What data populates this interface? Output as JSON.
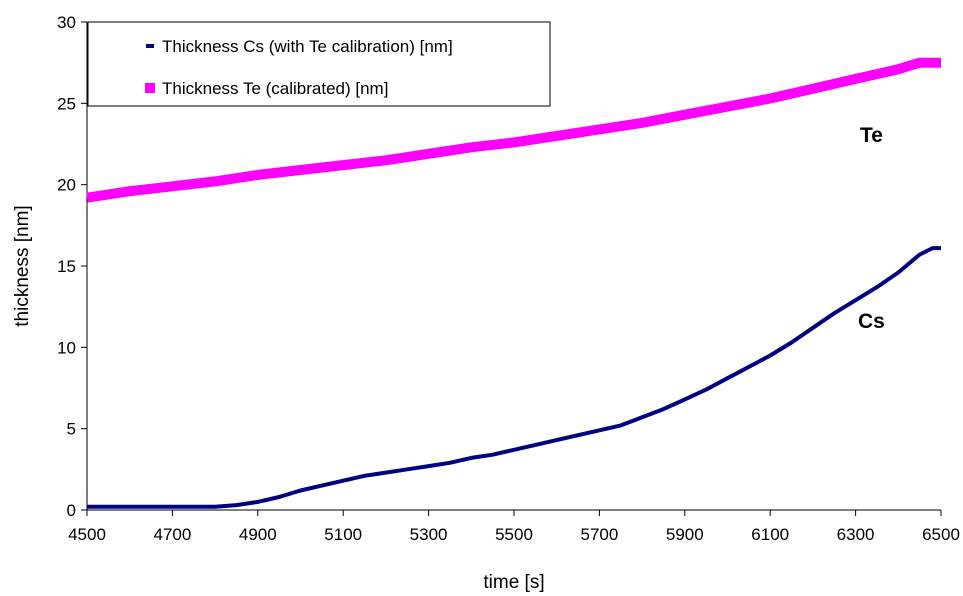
{
  "chart_data": {
    "type": "line",
    "xlabel": "time [s]",
    "ylabel": "thickness [nm]",
    "xlim": [
      4500,
      6500
    ],
    "ylim": [
      0,
      30
    ],
    "xticks": [
      "4500",
      "4700",
      "4900",
      "5100",
      "5300",
      "5500",
      "5700",
      "5900",
      "6100",
      "6300",
      "6500"
    ],
    "yticks": [
      "0",
      "5",
      "10",
      "15",
      "20",
      "25",
      "30"
    ],
    "grid": false,
    "legend_placement": "top-left",
    "series": [
      {
        "name": "Thickness Cs (with Te calibration) [nm]",
        "label": "Cs",
        "color": "#000080",
        "x": [
          4500,
          4600,
          4700,
          4800,
          4850,
          4900,
          4950,
          5000,
          5050,
          5100,
          5150,
          5200,
          5250,
          5300,
          5350,
          5400,
          5450,
          5500,
          5550,
          5600,
          5650,
          5700,
          5750,
          5800,
          5850,
          5900,
          5950,
          6000,
          6050,
          6100,
          6150,
          6200,
          6250,
          6300,
          6350,
          6400,
          6450,
          6480,
          6500
        ],
        "values": [
          0.2,
          0.2,
          0.2,
          0.2,
          0.3,
          0.5,
          0.8,
          1.2,
          1.5,
          1.8,
          2.1,
          2.3,
          2.5,
          2.7,
          2.9,
          3.2,
          3.4,
          3.7,
          4.0,
          4.3,
          4.6,
          4.9,
          5.2,
          5.7,
          6.2,
          6.8,
          7.4,
          8.1,
          8.8,
          9.5,
          10.3,
          11.2,
          12.1,
          12.9,
          13.7,
          14.6,
          15.7,
          16.1,
          16.1
        ]
      },
      {
        "name": "Thickness Te (calibrated) [nm]",
        "label": "Te",
        "color": "#FF00FF",
        "x": [
          4500,
          4600,
          4700,
          4800,
          4900,
          5000,
          5100,
          5200,
          5300,
          5400,
          5500,
          5600,
          5700,
          5800,
          5900,
          6000,
          6100,
          6200,
          6300,
          6400,
          6450,
          6500
        ],
        "values": [
          19.2,
          19.6,
          19.9,
          20.2,
          20.6,
          20.9,
          21.2,
          21.5,
          21.9,
          22.3,
          22.6,
          23.0,
          23.4,
          23.8,
          24.3,
          24.8,
          25.3,
          25.9,
          26.5,
          27.1,
          27.5,
          27.5
        ]
      }
    ]
  }
}
